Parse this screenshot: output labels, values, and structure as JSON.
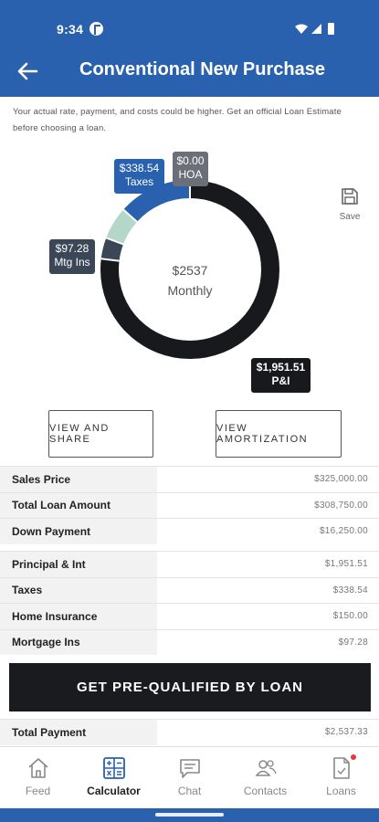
{
  "status_bar": {
    "time": "9:34"
  },
  "app_bar": {
    "title": "Conventional New Purchase"
  },
  "disclaimer": "Your actual rate, payment, and costs could be higher. Get an official Loan Estimate before choosing a loan.",
  "chart_data": {
    "type": "pie",
    "categories": [
      "P&I",
      "Mtg Ins",
      "Home Insurance",
      "Taxes",
      "HOA"
    ],
    "values": [
      1951.51,
      97.28,
      150.0,
      338.54,
      0.0
    ],
    "colors": [
      "#17191d",
      "#3b4657",
      "#b5d7c9",
      "#2a61ae",
      "#6b7078"
    ],
    "center_amount": "$2537",
    "center_label": "Monthly",
    "labels": {
      "pi": {
        "amount": "$1,951.51",
        "name": "P&I"
      },
      "taxes": {
        "amount": "$338.54",
        "name": "Taxes"
      },
      "hoa": {
        "amount": "$0.00",
        "name": "HOA"
      },
      "mtg_ins": {
        "amount": "$97.28",
        "name": "Mtg Ins"
      }
    }
  },
  "save": {
    "label": "Save"
  },
  "buttons": {
    "view_share": "VIEW AND SHARE",
    "view_amortization": "VIEW AMORTIZATION"
  },
  "loan_summary": [
    {
      "label": "Sales Price",
      "value": "$325,000.00"
    },
    {
      "label": "Total Loan Amount",
      "value": "$308,750.00"
    },
    {
      "label": "Down Payment",
      "value": "$16,250.00"
    }
  ],
  "payment_breakdown": [
    {
      "label": "Principal & Int",
      "value": "$1,951.51"
    },
    {
      "label": "Taxes",
      "value": "$338.54"
    },
    {
      "label": "Home Insurance",
      "value": "$150.00"
    },
    {
      "label": "Mortgage Ins",
      "value": "$97.28"
    }
  ],
  "cta": {
    "label": "GET PRE-QUALIFIED BY LOAN"
  },
  "total": {
    "label": "Total Payment",
    "value": "$2,537.33"
  },
  "nav": {
    "items": [
      {
        "label": "Feed",
        "icon": "home-icon"
      },
      {
        "label": "Calculator",
        "icon": "calculator-icon"
      },
      {
        "label": "Chat",
        "icon": "chat-icon"
      },
      {
        "label": "Contacts",
        "icon": "contacts-icon"
      },
      {
        "label": "Loans",
        "icon": "document-icon"
      }
    ],
    "active": "Calculator"
  }
}
